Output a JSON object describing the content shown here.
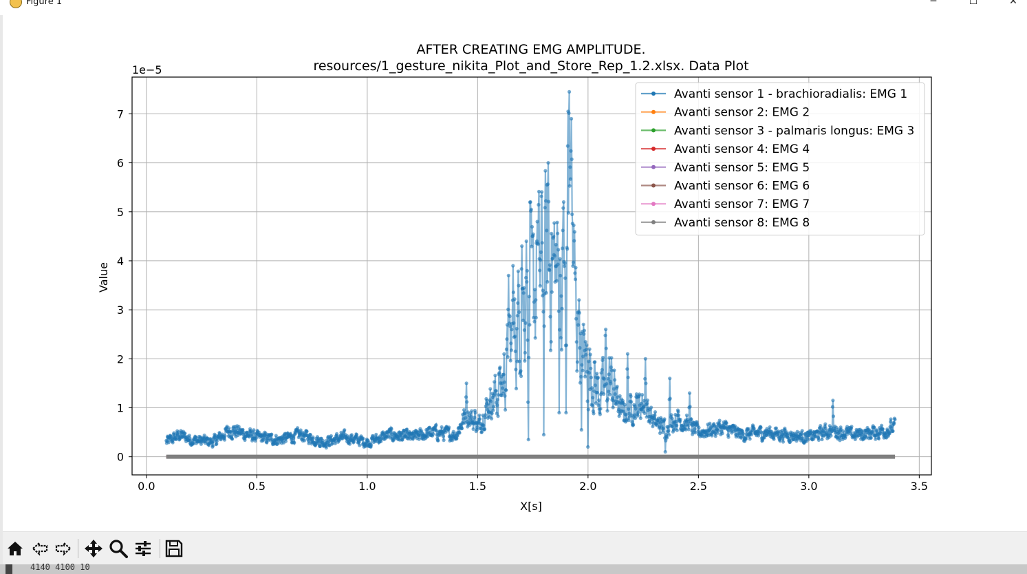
{
  "window": {
    "title": "Figure 1",
    "minimize": "─",
    "maximize": "☐",
    "close": "✕"
  },
  "toolbar": {
    "items": [
      {
        "name": "home-button",
        "icon": "home-icon"
      },
      {
        "name": "back-button",
        "icon": "arrow-left-icon"
      },
      {
        "name": "forward-button",
        "icon": "arrow-right-icon"
      },
      {
        "name": "pan-button",
        "icon": "move-icon"
      },
      {
        "name": "zoom-button",
        "icon": "magnifier-icon"
      },
      {
        "name": "configure-subplots-button",
        "icon": "sliders-icon"
      },
      {
        "name": "save-button",
        "icon": "floppy-disk-icon"
      }
    ]
  },
  "bottom_text": "4140 4100 10",
  "chart_data": {
    "type": "line",
    "title": "AFTER CREATING EMG AMPLITUDE.",
    "subtitle": "resources/1_gesture_nikita_Plot_and_Store_Rep_1.2.xlsx. Data Plot",
    "xlabel": "X[s]",
    "ylabel": "Value",
    "y_scale_label": "1e−5",
    "xlim": [
      -0.065,
      3.555
    ],
    "ylim": [
      -0.37,
      7.75
    ],
    "xticks": [
      0.0,
      0.5,
      1.0,
      1.5,
      2.0,
      2.5,
      3.0,
      3.5
    ],
    "xtick_labels": [
      "0.0",
      "0.5",
      "1.0",
      "1.5",
      "2.0",
      "2.5",
      "3.0",
      "3.5"
    ],
    "yticks": [
      0,
      1,
      2,
      3,
      4,
      5,
      6,
      7
    ],
    "ytick_labels": [
      "0",
      "1",
      "2",
      "3",
      "4",
      "5",
      "6",
      "7"
    ],
    "grid": true,
    "legend_position": "top-right",
    "x_range": [
      0.09,
      3.39
    ],
    "series": [
      {
        "name": "Avanti sensor 1 - brachioradialis: EMG 1",
        "color": "#1f77b4",
        "profile": [
          [
            0.09,
            0.3
          ],
          [
            0.15,
            0.45
          ],
          [
            0.2,
            0.35
          ],
          [
            0.3,
            0.3
          ],
          [
            0.38,
            0.55
          ],
          [
            0.5,
            0.4
          ],
          [
            0.6,
            0.35
          ],
          [
            0.7,
            0.45
          ],
          [
            0.8,
            0.3
          ],
          [
            0.9,
            0.4
          ],
          [
            1.0,
            0.3
          ],
          [
            1.1,
            0.45
          ],
          [
            1.2,
            0.4
          ],
          [
            1.3,
            0.5
          ],
          [
            1.4,
            0.45
          ],
          [
            1.45,
            0.9
          ],
          [
            1.5,
            0.6
          ],
          [
            1.55,
            1.1
          ],
          [
            1.6,
            1.4
          ],
          [
            1.65,
            2.2
          ],
          [
            1.7,
            3.2
          ],
          [
            1.75,
            3.4
          ],
          [
            1.8,
            4.2
          ],
          [
            1.85,
            4.0
          ],
          [
            1.9,
            3.3
          ],
          [
            1.92,
            5.2
          ],
          [
            1.95,
            2.6
          ],
          [
            2.0,
            1.9
          ],
          [
            2.05,
            1.3
          ],
          [
            2.1,
            1.6
          ],
          [
            2.15,
            0.9
          ],
          [
            2.2,
            1.0
          ],
          [
            2.25,
            1.1
          ],
          [
            2.3,
            0.7
          ],
          [
            2.35,
            0.6
          ],
          [
            2.4,
            0.8
          ],
          [
            2.5,
            0.5
          ],
          [
            2.6,
            0.6
          ],
          [
            2.7,
            0.45
          ],
          [
            2.8,
            0.5
          ],
          [
            2.9,
            0.45
          ],
          [
            3.0,
            0.4
          ],
          [
            3.1,
            0.55
          ],
          [
            3.2,
            0.45
          ],
          [
            3.3,
            0.5
          ],
          [
            3.39,
            0.6
          ]
        ],
        "peaks": [
          [
            1.45,
            1.5
          ],
          [
            1.49,
            0.9
          ],
          [
            1.6,
            1.8
          ],
          [
            1.64,
            3.7
          ],
          [
            1.66,
            3.9
          ],
          [
            1.7,
            4.3
          ],
          [
            1.72,
            4.4
          ],
          [
            1.74,
            5.2
          ],
          [
            1.77,
            4.8
          ],
          [
            1.8,
            5.5
          ],
          [
            1.82,
            6.0
          ],
          [
            1.85,
            4.1
          ],
          [
            1.87,
            5.8
          ],
          [
            1.89,
            5.2
          ],
          [
            1.91,
            7.05
          ],
          [
            1.915,
            7.45
          ],
          [
            1.925,
            6.9
          ],
          [
            1.96,
            3.2
          ],
          [
            2.0,
            2.3
          ],
          [
            2.08,
            2.6
          ],
          [
            2.18,
            2.1
          ],
          [
            2.26,
            2.0
          ],
          [
            2.37,
            1.6
          ],
          [
            2.46,
            1.3
          ],
          [
            3.11,
            1.15
          ]
        ],
        "dips": [
          [
            1.73,
            0.35
          ],
          [
            1.8,
            0.45
          ],
          [
            1.87,
            0.9
          ],
          [
            1.9,
            0.9
          ],
          [
            1.97,
            0.55
          ],
          [
            2.0,
            0.2
          ],
          [
            2.35,
            0.1
          ]
        ]
      },
      {
        "name": "Avanti sensor 2: EMG 2",
        "color": "#ff7f0e",
        "value": 0
      },
      {
        "name": "Avanti sensor 3 - palmaris longus: EMG 3",
        "color": "#2ca02c",
        "value": 0
      },
      {
        "name": "Avanti sensor 4: EMG 4",
        "color": "#d62728",
        "value": 0
      },
      {
        "name": "Avanti sensor 5: EMG 5",
        "color": "#9467bd",
        "value": 0
      },
      {
        "name": "Avanti sensor 6: EMG 6",
        "color": "#8c564b",
        "value": 0
      },
      {
        "name": "Avanti sensor 7: EMG 7",
        "color": "#e377c2",
        "value": 0
      },
      {
        "name": "Avanti sensor 8: EMG 8",
        "color": "#7f7f7f",
        "value": 0
      }
    ]
  }
}
